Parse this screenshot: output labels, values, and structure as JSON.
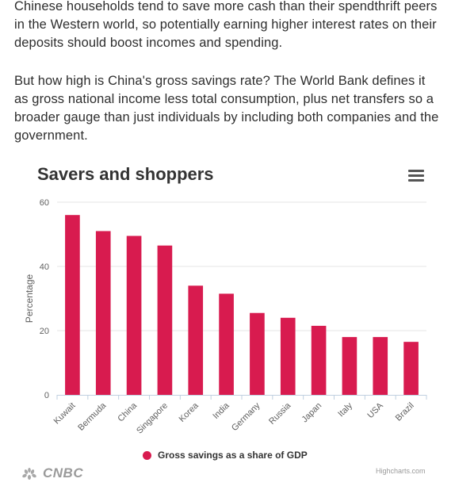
{
  "article": {
    "paragraph1": "Chinese households tend to save more cash than their spendthrift peers in the Western world, so potentially earning higher interest rates on their deposits should boost incomes and spending.",
    "paragraph2": "But how high is China's gross savings rate? The World Bank defines it as gross national income less total consumption, plus net transfers so a broader gauge than just individuals by including both companies and the government."
  },
  "chart": {
    "menu_icon": "hamburger-menu-icon",
    "logo_text": "CNBC",
    "credit": "Highcharts.com"
  },
  "chart_data": {
    "type": "bar",
    "title": "Savers and shoppers",
    "xlabel": "",
    "ylabel": "Percentage",
    "ylim": [
      0,
      60
    ],
    "yticks": [
      0,
      20,
      40,
      60
    ],
    "grid": true,
    "legend_position": "bottom-center",
    "categories": [
      "Kuwait",
      "Bermuda",
      "China",
      "Singapore",
      "Korea",
      "India",
      "Germany",
      "Russia",
      "Japan",
      "Italy",
      "USA",
      "Brazil"
    ],
    "series": [
      {
        "name": "Gross savings as a share of GDP",
        "color": "#d81b4f",
        "values": [
          56,
          51,
          49.5,
          46.5,
          34,
          31.5,
          25.5,
          24,
          21.5,
          18,
          18,
          16.5
        ]
      }
    ]
  }
}
